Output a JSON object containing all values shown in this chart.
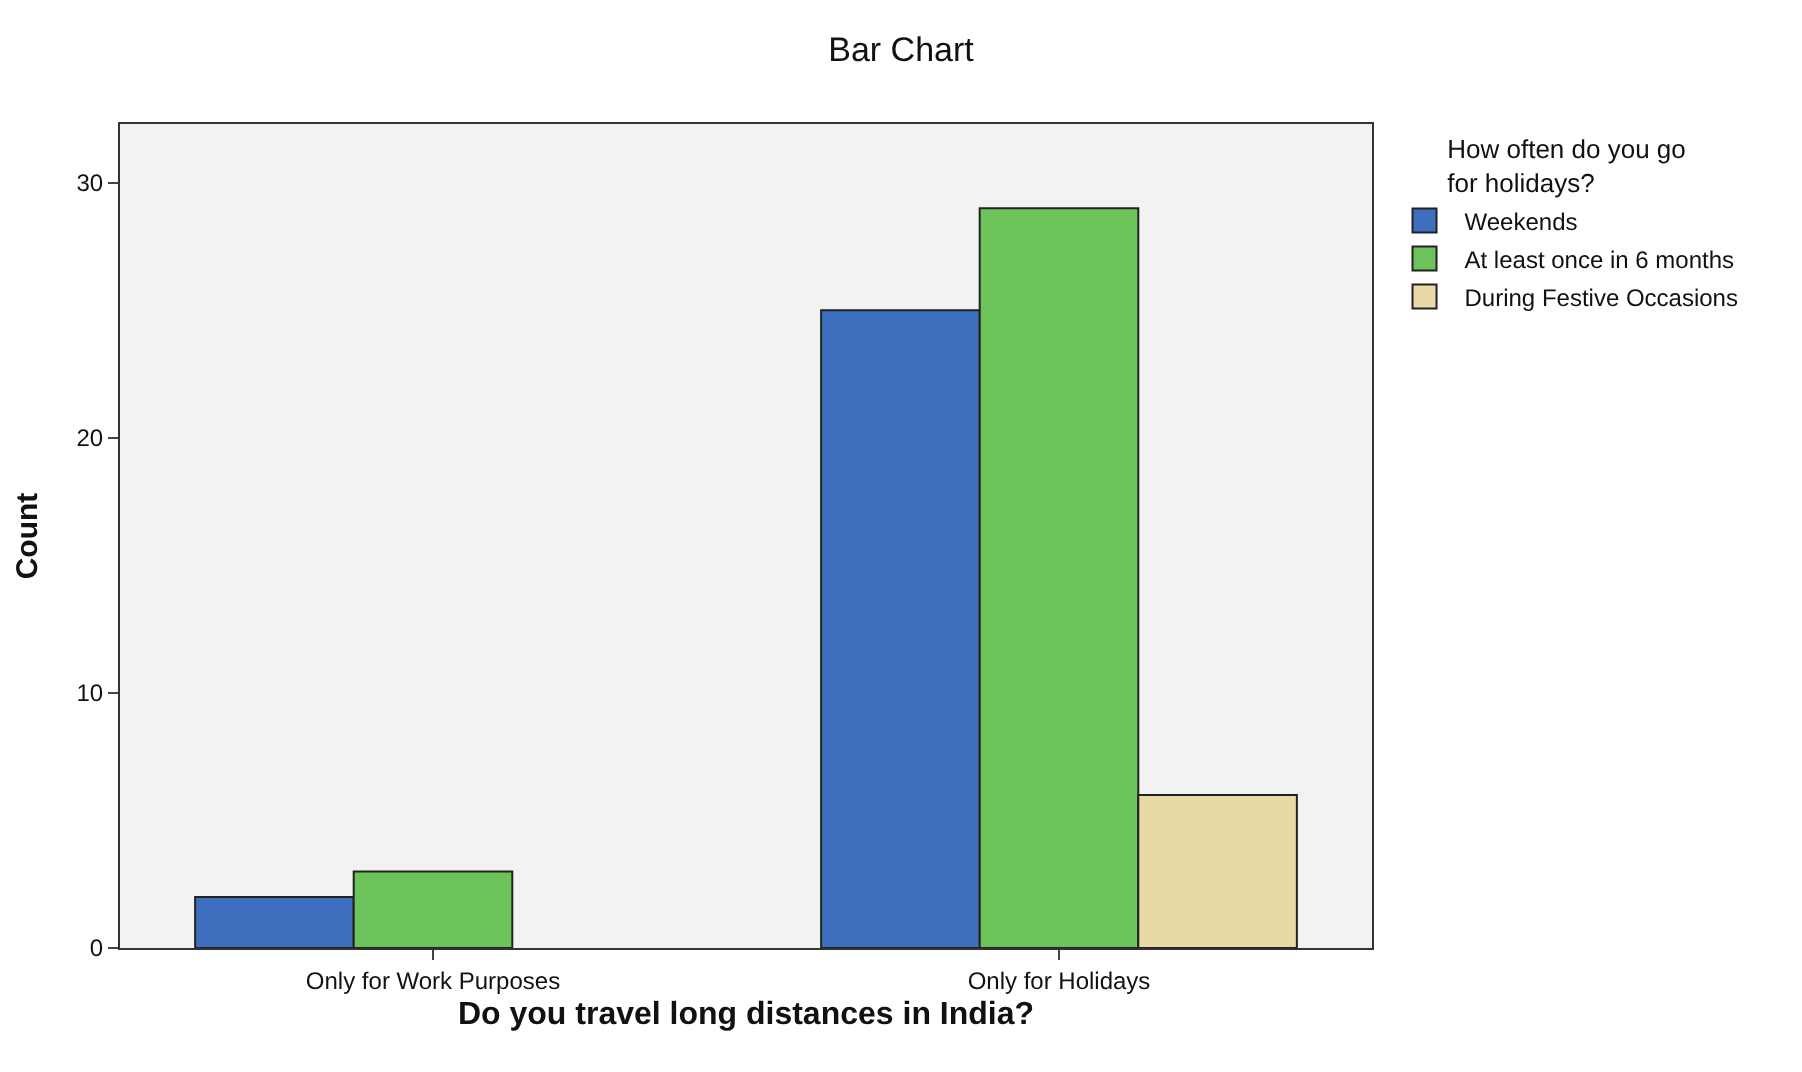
{
  "chart_data": {
    "type": "bar",
    "title": "Bar Chart",
    "xlabel": "Do you travel long distances in India?",
    "ylabel": "Count",
    "legend_title": "How often do you go for holidays?",
    "categories": [
      "Only for Work Purposes",
      "Only for Holidays"
    ],
    "series": [
      {
        "name": "Weekends",
        "color": "#3e6fbf",
        "values": [
          2,
          25
        ]
      },
      {
        "name": "At least once in 6 months",
        "color": "#6cc35a",
        "values": [
          3,
          29
        ]
      },
      {
        "name": "During Festive Occasions",
        "color": "#e8d9a5",
        "values": [
          null,
          6
        ]
      }
    ],
    "ylim": [
      0,
      32.3
    ],
    "yticks": [
      0,
      10,
      20,
      30
    ],
    "grid": false,
    "legend": "top right"
  }
}
